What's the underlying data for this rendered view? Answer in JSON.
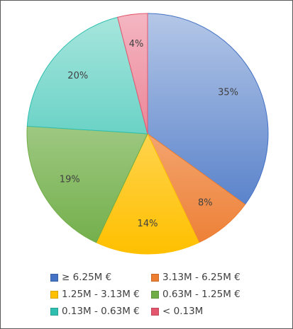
{
  "chart_data": {
    "type": "pie",
    "categories": [
      "≥ 6.25M €",
      "3.13M - 6.25M €",
      "1.25M - 3.13M €",
      "0.63M - 1.25M €",
      "0.13M - 0.63M €",
      "< 0.13M"
    ],
    "values": [
      35,
      8,
      14,
      19,
      20,
      4
    ],
    "labels": [
      "35%",
      "8%",
      "14%",
      "19%",
      "20%",
      "4%"
    ],
    "legend_position": "bottom",
    "colors": [
      "#4472c4",
      "#ed7d31",
      "#ffc000",
      "#70ad47",
      "#2ebfb0",
      "#e3566e"
    ],
    "light_colors": [
      "#b4c7e7",
      "#f8cbad",
      "#ffe699",
      "#c5e0b4",
      "#a8e6dd",
      "#f4b6c2"
    ],
    "start_angle_deg": 0,
    "direction": "clockwise"
  }
}
